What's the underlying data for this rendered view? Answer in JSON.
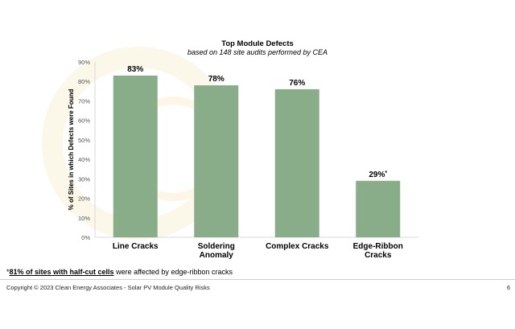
{
  "chart_data": {
    "type": "bar",
    "title": "Top Module Defects",
    "subtitle": "based on 148 site audits performed by CEA",
    "ylabel": "% of Sites in which Defects were Found",
    "categories": [
      "Line Cracks",
      "Soldering Anomaly",
      "Complex Cracks",
      "Edge-Ribbon Cracks"
    ],
    "category_lines": [
      [
        "Line Cracks"
      ],
      [
        "Soldering",
        "Anomaly"
      ],
      [
        "Complex Cracks"
      ],
      [
        "Edge-Ribbon",
        "Cracks"
      ]
    ],
    "values": [
      83,
      78,
      76,
      29
    ],
    "data_labels": [
      "83%",
      "78%",
      "76%",
      "29%"
    ],
    "data_label_marks": [
      "",
      "",
      "",
      "*"
    ],
    "ylim": [
      0,
      90
    ],
    "yticks": [
      0,
      10,
      20,
      30,
      40,
      50,
      60,
      70,
      80,
      90
    ],
    "ytick_labels": [
      "0%",
      "10%",
      "20%",
      "30%",
      "40%",
      "50%",
      "60%",
      "70%",
      "80%",
      "90%"
    ],
    "grid": false,
    "bar_color": "#8aad89"
  },
  "footnote": {
    "mark": "*",
    "highlight": "81% of sites with half-cut cells",
    "rest": " were affected by edge-ribbon cracks"
  },
  "footer": {
    "copyright": "Copyright © 2023 Clean Energy Associates - Solar PV Module Quality Risks",
    "page_number": "6"
  }
}
